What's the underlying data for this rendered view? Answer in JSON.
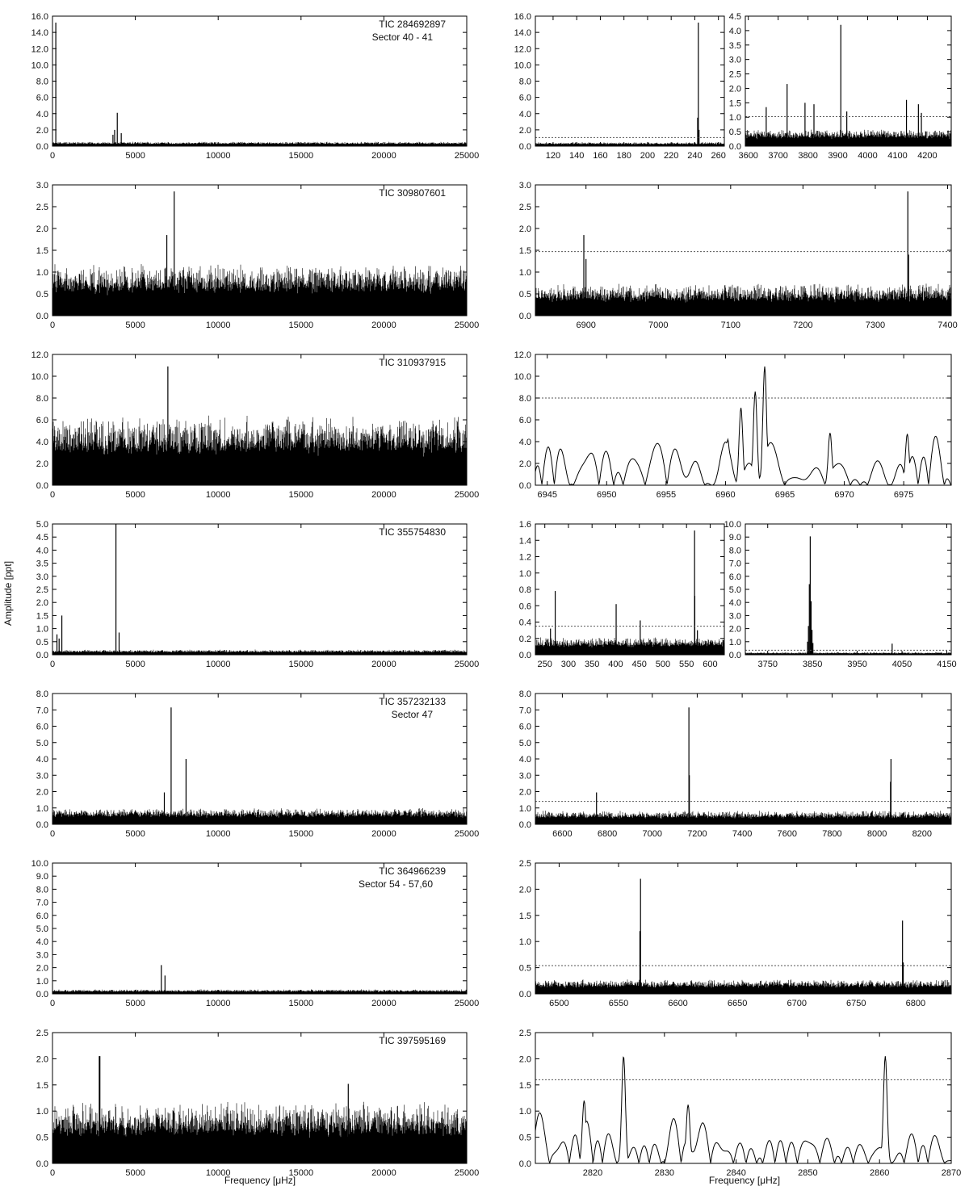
{
  "figure": {
    "ylabel": "Amplitude [ppt]",
    "xlabel": "Frequency [μHz]",
    "colors": {
      "line": "#000000",
      "threshold": "#555555",
      "background": "#ffffff"
    }
  },
  "chart_data": [
    {
      "id": "r1-full",
      "type": "line",
      "annotations": [
        "TIC 284692897",
        "Sector 40 - 41"
      ],
      "xlim": [
        0,
        25000
      ],
      "ylim": [
        0,
        16
      ],
      "xticks": [
        0,
        5000,
        10000,
        15000,
        20000,
        25000
      ],
      "yticks": [
        0,
        2,
        4,
        6,
        8,
        10,
        12,
        14,
        16
      ],
      "ydec": 1,
      "noise": 0.55,
      "threshold": null,
      "peaks": [
        {
          "x": 200,
          "y": 15.2
        },
        {
          "x": 3750,
          "y": 2.0
        },
        {
          "x": 3910,
          "y": 4.1
        },
        {
          "x": 3650,
          "y": 1.4
        },
        {
          "x": 4150,
          "y": 1.6
        }
      ]
    },
    {
      "id": "r1-zoom-a",
      "type": "line",
      "xlim": [
        105,
        265
      ],
      "ylim": [
        0,
        16
      ],
      "xticks": [
        120,
        140,
        160,
        180,
        200,
        220,
        240,
        260
      ],
      "yticks": [
        0,
        2,
        4,
        6,
        8,
        10,
        12,
        14,
        16
      ],
      "ydec": 1,
      "noise": 0.5,
      "threshold": 1.05,
      "peaks": [
        {
          "x": 243,
          "y": 15.2
        },
        {
          "x": 242.4,
          "y": 3.5
        },
        {
          "x": 243.6,
          "y": 2.0
        }
      ]
    },
    {
      "id": "r1-zoom-b",
      "type": "line",
      "xlim": [
        3590,
        4280
      ],
      "ylim": [
        0,
        4.5
      ],
      "xticks": [
        3600,
        3700,
        3800,
        3900,
        4000,
        4100,
        4200
      ],
      "yticks": [
        0,
        0.5,
        1,
        1.5,
        2,
        2.5,
        3,
        3.5,
        4,
        4.5
      ],
      "ydec": 1,
      "noise": 0.6,
      "threshold": 1.02,
      "peaks": [
        {
          "x": 3910,
          "y": 4.2
        },
        {
          "x": 3730,
          "y": 2.15
        },
        {
          "x": 4130,
          "y": 1.6
        },
        {
          "x": 3790,
          "y": 1.5
        },
        {
          "x": 4170,
          "y": 1.45
        },
        {
          "x": 3820,
          "y": 1.45
        },
        {
          "x": 3660,
          "y": 1.35
        },
        {
          "x": 3930,
          "y": 1.2
        },
        {
          "x": 4180,
          "y": 1.15
        }
      ]
    },
    {
      "id": "r2-full",
      "type": "line",
      "annotations": [
        "TIC 309807601"
      ],
      "xlim": [
        0,
        25000
      ],
      "ylim": [
        0,
        3
      ],
      "xticks": [
        0,
        5000,
        10000,
        15000,
        20000,
        25000
      ],
      "yticks": [
        0,
        0.5,
        1,
        1.5,
        2,
        2.5,
        3
      ],
      "ydec": 1,
      "noise": 1.2,
      "threshold": null,
      "peaks": [
        {
          "x": 6900,
          "y": 1.85
        },
        {
          "x": 7345,
          "y": 2.85
        }
      ]
    },
    {
      "id": "r2-zoom",
      "type": "line",
      "xlim": [
        6830,
        7405
      ],
      "ylim": [
        0,
        3
      ],
      "xticks": [
        6900,
        7000,
        7100,
        7200,
        7300,
        7400
      ],
      "yticks": [
        0,
        0.5,
        1,
        1.5,
        2,
        2.5,
        3
      ],
      "ydec": 1,
      "noise": 0.75,
      "threshold": 1.47,
      "peaks": [
        {
          "x": 6897,
          "y": 1.85
        },
        {
          "x": 6900,
          "y": 1.3
        },
        {
          "x": 7345,
          "y": 2.85
        },
        {
          "x": 7346,
          "y": 1.4
        }
      ]
    },
    {
      "id": "r3-full",
      "type": "line",
      "annotations": [
        "TIC 310937915"
      ],
      "xlim": [
        0,
        25000
      ],
      "ylim": [
        0,
        12
      ],
      "xticks": [
        0,
        5000,
        10000,
        15000,
        20000,
        25000
      ],
      "yticks": [
        0,
        2,
        4,
        6,
        8,
        10,
        12
      ],
      "ydec": 1,
      "noise": 6.5,
      "threshold": null,
      "peaks": [
        {
          "x": 6963,
          "y": 10.9
        }
      ]
    },
    {
      "id": "r3-zoom",
      "type": "line",
      "smooth": true,
      "xlim": [
        6944,
        6979
      ],
      "ylim": [
        0,
        12
      ],
      "xticks": [
        6945,
        6950,
        6955,
        6960,
        6965,
        6970,
        6975
      ],
      "yticks": [
        0,
        2,
        4,
        6,
        8,
        10,
        12
      ],
      "ydec": 1,
      "noise": 3.8,
      "threshold": 8.0,
      "peaks": [
        {
          "x": 6961.3,
          "y": 7.1
        },
        {
          "x": 6962.5,
          "y": 8.6
        },
        {
          "x": 6963.3,
          "y": 10.9
        },
        {
          "x": 6960.2,
          "y": 4.2
        },
        {
          "x": 6968.8,
          "y": 4.8
        },
        {
          "x": 6975.3,
          "y": 4.7
        }
      ]
    },
    {
      "id": "r4-full",
      "type": "line",
      "annotations": [
        "TIC 355754830"
      ],
      "xlim": [
        0,
        25000
      ],
      "ylim": [
        0,
        5
      ],
      "xticks": [
        0,
        5000,
        10000,
        15000,
        20000,
        25000
      ],
      "yticks": [
        0,
        0.5,
        1,
        1.5,
        2,
        2.5,
        3,
        3.5,
        4,
        4.5,
        5
      ],
      "ydec": 1,
      "noise": 0.2,
      "threshold": null,
      "peaks": [
        {
          "x": 3830,
          "y": 5.0
        },
        {
          "x": 4020,
          "y": 0.85
        },
        {
          "x": 565,
          "y": 1.5
        },
        {
          "x": 270,
          "y": 0.78
        },
        {
          "x": 400,
          "y": 0.62
        }
      ]
    },
    {
      "id": "r4-zoom-a",
      "type": "line",
      "xlim": [
        230,
        630
      ],
      "ylim": [
        0,
        1.6
      ],
      "xticks": [
        250,
        300,
        350,
        400,
        450,
        500,
        550,
        600
      ],
      "yticks": [
        0,
        0.2,
        0.4,
        0.6,
        0.8,
        1,
        1.2,
        1.4,
        1.6
      ],
      "ydec": 1,
      "noise": 0.22,
      "threshold": 0.35,
      "peaks": [
        {
          "x": 567,
          "y": 1.52
        },
        {
          "x": 567.5,
          "y": 0.72
        },
        {
          "x": 272,
          "y": 0.78
        },
        {
          "x": 401,
          "y": 0.62
        },
        {
          "x": 452,
          "y": 0.42
        },
        {
          "x": 262,
          "y": 0.32
        },
        {
          "x": 573,
          "y": 0.3
        }
      ]
    },
    {
      "id": "r4-zoom-b",
      "type": "line",
      "xlim": [
        3700,
        4160
      ],
      "ylim": [
        0,
        10
      ],
      "xticks": [
        3750,
        3850,
        3950,
        4050,
        4150
      ],
      "yticks": [
        0,
        1,
        2,
        3,
        4,
        5,
        6,
        7,
        8,
        9,
        10
      ],
      "ydec": 1,
      "noise": 0.2,
      "threshold": 0.35,
      "peaks": [
        {
          "x": 3845,
          "y": 9.05
        },
        {
          "x": 3843,
          "y": 5.4
        },
        {
          "x": 3847,
          "y": 4.1
        },
        {
          "x": 3841,
          "y": 2.2
        },
        {
          "x": 3849,
          "y": 1.9
        },
        {
          "x": 3839,
          "y": 1.0
        },
        {
          "x": 3851,
          "y": 0.9
        },
        {
          "x": 4028,
          "y": 0.85
        }
      ]
    },
    {
      "id": "r5-full",
      "type": "line",
      "annotations": [
        "TIC 357232133",
        "Sector 47"
      ],
      "xlim": [
        0,
        25000
      ],
      "ylim": [
        0,
        8
      ],
      "xticks": [
        0,
        5000,
        10000,
        15000,
        20000,
        25000
      ],
      "yticks": [
        0,
        1,
        2,
        3,
        4,
        5,
        6,
        7,
        8
      ],
      "ydec": 1,
      "noise": 1.0,
      "threshold": null,
      "peaks": [
        {
          "x": 7160,
          "y": 7.15
        },
        {
          "x": 8060,
          "y": 4.0
        },
        {
          "x": 6750,
          "y": 1.95
        }
      ]
    },
    {
      "id": "r5-zoom",
      "type": "line",
      "xlim": [
        6480,
        8330
      ],
      "ylim": [
        0,
        8
      ],
      "xticks": [
        6600,
        6800,
        7000,
        7200,
        7400,
        7600,
        7800,
        8000,
        8200
      ],
      "yticks": [
        0,
        1,
        2,
        3,
        4,
        5,
        6,
        7,
        8
      ],
      "ydec": 1,
      "noise": 0.85,
      "threshold": 1.4,
      "peaks": [
        {
          "x": 7163,
          "y": 7.15
        },
        {
          "x": 8062,
          "y": 4.0
        },
        {
          "x": 6752,
          "y": 1.95
        },
        {
          "x": 8060,
          "y": 2.6
        },
        {
          "x": 7165,
          "y": 3.0
        }
      ]
    },
    {
      "id": "r6-full",
      "type": "line",
      "annotations": [
        "TIC 364966239",
        "Sector 54 - 57,60"
      ],
      "xlim": [
        0,
        25000
      ],
      "ylim": [
        0,
        10
      ],
      "xticks": [
        0,
        5000,
        10000,
        15000,
        20000,
        25000
      ],
      "yticks": [
        0,
        1,
        2,
        3,
        4,
        5,
        6,
        7,
        8,
        9,
        10
      ],
      "ydec": 1,
      "noise": 0.35,
      "threshold": null,
      "peaks": [
        {
          "x": 6568,
          "y": 2.2
        },
        {
          "x": 6790,
          "y": 1.4
        }
      ]
    },
    {
      "id": "r6-zoom",
      "type": "line",
      "xlim": [
        6480,
        6830
      ],
      "ylim": [
        0,
        2.5
      ],
      "xticks": [
        6500,
        6550,
        6600,
        6650,
        6700,
        6750,
        6800
      ],
      "yticks": [
        0,
        0.5,
        1,
        1.5,
        2,
        2.5
      ],
      "ydec": 1,
      "noise": 0.28,
      "threshold": 0.54,
      "peaks": [
        {
          "x": 6568.5,
          "y": 2.2
        },
        {
          "x": 6568,
          "y": 1.2
        },
        {
          "x": 6789,
          "y": 1.4
        },
        {
          "x": 6789.6,
          "y": 0.6
        }
      ]
    },
    {
      "id": "r7-full",
      "type": "line",
      "annotations": [
        "TIC 397595169"
      ],
      "xlim": [
        0,
        25000
      ],
      "ylim": [
        0,
        2.5
      ],
      "xticks": [
        0,
        5000,
        10000,
        15000,
        20000,
        25000
      ],
      "yticks": [
        0,
        0.5,
        1,
        1.5,
        2,
        2.5
      ],
      "ydec": 1,
      "noise": 1.2,
      "threshold": null,
      "peaks": [
        {
          "x": 2824,
          "y": 2.05
        },
        {
          "x": 2861,
          "y": 2.05
        },
        {
          "x": 17850,
          "y": 1.52
        }
      ]
    },
    {
      "id": "r7-zoom",
      "type": "line",
      "smooth": true,
      "xlim": [
        2812,
        2870
      ],
      "ylim": [
        0,
        2.5
      ],
      "xticks": [
        2820,
        2830,
        2840,
        2850,
        2860,
        2870
      ],
      "yticks": [
        0,
        0.5,
        1,
        1.5,
        2,
        2.5
      ],
      "ydec": 1,
      "noise": 0.95,
      "threshold": 1.6,
      "peaks": [
        {
          "x": 2824.3,
          "y": 2.05
        },
        {
          "x": 2860.8,
          "y": 2.05
        },
        {
          "x": 2818.8,
          "y": 1.2
        },
        {
          "x": 2833.3,
          "y": 1.12
        }
      ]
    }
  ]
}
